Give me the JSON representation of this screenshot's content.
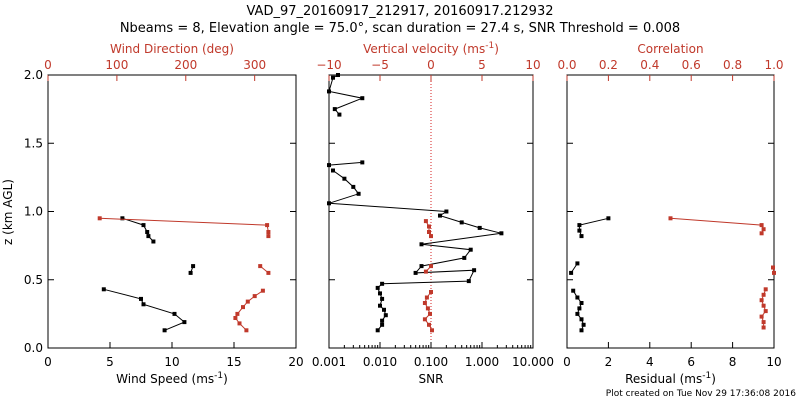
{
  "header": {
    "title_line1": "VAD_97_20160917_212917, 20160917.212932",
    "title_line2": "Nbeams = 8, Elevation angle = 75.0°, scan duration = 27.4 s, SNR Threshold = 0.008"
  },
  "footer": {
    "created": "Plot created on Tue Nov 29 17:36:08 2016"
  },
  "y_axis": {
    "label": "z (km AGL)",
    "ticks": [
      "0.0",
      "0.5",
      "1.0",
      "1.5",
      "2.0"
    ],
    "ylim": [
      0,
      2.0
    ]
  },
  "colors": {
    "primary": "#000000",
    "secondary": "#c0392b",
    "zero_line": "#d62020"
  },
  "chart_data": [
    {
      "type": "line",
      "panel": "wind",
      "bottom_axis": {
        "label": "Wind Speed (ms",
        "label_sup": "-1",
        "label_end": ")",
        "ticks": [
          "0",
          "5",
          "10",
          "15",
          "20"
        ],
        "range": [
          0,
          20
        ]
      },
      "top_axis": {
        "label": "Wind Direction (deg)",
        "ticks": [
          "0",
          "100",
          "200",
          "300"
        ],
        "range": [
          0,
          360
        ]
      },
      "series": [
        {
          "axis": "bottom",
          "color": "#000000",
          "segments": [
            [
              [
                6.0,
                0.95
              ],
              [
                7.7,
                0.9
              ],
              [
                8.0,
                0.85
              ],
              [
                8.1,
                0.82
              ],
              [
                8.5,
                0.78
              ]
            ],
            [
              [
                11.7,
                0.6
              ],
              [
                11.5,
                0.55
              ]
            ],
            [
              [
                4.5,
                0.43
              ],
              [
                7.5,
                0.36
              ],
              [
                7.7,
                0.32
              ],
              [
                10.2,
                0.25
              ],
              [
                11.0,
                0.19
              ],
              [
                9.4,
                0.13
              ]
            ]
          ]
        },
        {
          "axis": "top",
          "color": "#c0392b",
          "segments": [
            [
              [
                75,
                0.95
              ],
              [
                318,
                0.9
              ],
              [
                320,
                0.85
              ],
              [
                320,
                0.82
              ]
            ],
            [
              [
                308,
                0.6
              ],
              [
                320,
                0.55
              ]
            ],
            [
              [
                312,
                0.42
              ],
              [
                300,
                0.38
              ],
              [
                290,
                0.34
              ],
              [
                283,
                0.3
              ],
              [
                275,
                0.25
              ],
              [
                272,
                0.22
              ],
              [
                278,
                0.18
              ],
              [
                288,
                0.13
              ]
            ]
          ]
        }
      ]
    },
    {
      "type": "line",
      "panel": "snr",
      "bottom_axis": {
        "label": "SNR",
        "ticks": [
          "0.001",
          "0.010",
          "0.100",
          "1.000",
          "10.000"
        ],
        "log": true,
        "range": [
          0.001,
          10
        ]
      },
      "top_axis": {
        "label": "Vertical velocity (ms",
        "label_sup": "-1",
        "label_end": ")",
        "ticks": [
          "−10",
          "−5",
          "0",
          "5",
          "10"
        ],
        "range": [
          -10,
          10
        ]
      },
      "series": [
        {
          "axis": "bottom",
          "color": "#000000",
          "segments": [
            [
              [
                0.0015,
                2.0
              ],
              [
                0.0012,
                1.98
              ],
              [
                0.001,
                1.88
              ],
              [
                0.0045,
                1.83
              ],
              [
                0.0013,
                1.75
              ],
              [
                0.0016,
                1.71
              ]
            ],
            [
              [
                0.0045,
                1.36
              ],
              [
                0.001,
                1.34
              ]
            ],
            [
              [
                0.0012,
                1.3
              ],
              [
                0.002,
                1.24
              ],
              [
                0.003,
                1.18
              ],
              [
                0.0038,
                1.13
              ],
              [
                0.001,
                1.06
              ],
              [
                0.2,
                1.0
              ],
              [
                0.15,
                0.97
              ],
              [
                0.4,
                0.92
              ],
              [
                0.9,
                0.88
              ],
              [
                2.4,
                0.84
              ],
              [
                0.065,
                0.76
              ],
              [
                0.6,
                0.72
              ],
              [
                0.45,
                0.66
              ],
              [
                0.065,
                0.6
              ],
              [
                0.05,
                0.55
              ],
              [
                0.7,
                0.57
              ],
              [
                0.55,
                0.49
              ],
              [
                0.011,
                0.47
              ],
              [
                0.009,
                0.44
              ],
              [
                0.01,
                0.4
              ],
              [
                0.011,
                0.36
              ],
              [
                0.01,
                0.31
              ],
              [
                0.012,
                0.28
              ],
              [
                0.013,
                0.24
              ],
              [
                0.011,
                0.2
              ],
              [
                0.011,
                0.17
              ],
              [
                0.009,
                0.13
              ]
            ]
          ]
        },
        {
          "axis": "top",
          "color": "#c0392b",
          "segments": [
            [
              [
                -0.5,
                0.93
              ],
              [
                -0.2,
                0.89
              ],
              [
                -0.2,
                0.85
              ],
              [
                0.0,
                0.82
              ]
            ],
            [
              [
                0.0,
                0.6
              ],
              [
                -0.5,
                0.56
              ]
            ],
            [
              [
                0.0,
                0.41
              ],
              [
                -0.4,
                0.37
              ],
              [
                -0.6,
                0.33
              ],
              [
                -0.3,
                0.29
              ],
              [
                -0.1,
                0.25
              ],
              [
                -0.6,
                0.21
              ],
              [
                -0.2,
                0.17
              ],
              [
                0.1,
                0.13
              ]
            ]
          ]
        }
      ],
      "reference_line": {
        "snr": 0.1,
        "color": "#d62020",
        "style": "dotted"
      }
    },
    {
      "type": "line",
      "panel": "residual",
      "bottom_axis": {
        "label": "Residual  (ms",
        "label_sup": "-1",
        "label_end": ")",
        "ticks": [
          "0",
          "2",
          "4",
          "6",
          "8",
          "10"
        ],
        "range": [
          0,
          10
        ]
      },
      "top_axis": {
        "label": "Correlation",
        "ticks": [
          "0.0",
          "0.2",
          "0.4",
          "0.6",
          "0.8",
          "1.0"
        ],
        "range": [
          0,
          1
        ]
      },
      "series": [
        {
          "axis": "bottom",
          "color": "#000000",
          "segments": [
            [
              [
                2.0,
                0.95
              ],
              [
                0.6,
                0.9
              ],
              [
                0.6,
                0.86
              ],
              [
                0.7,
                0.82
              ]
            ],
            [
              [
                0.5,
                0.62
              ],
              [
                0.2,
                0.55
              ]
            ],
            [
              [
                0.3,
                0.42
              ],
              [
                0.5,
                0.37
              ],
              [
                0.7,
                0.33
              ],
              [
                0.6,
                0.29
              ],
              [
                0.5,
                0.25
              ],
              [
                0.7,
                0.21
              ],
              [
                0.8,
                0.17
              ],
              [
                0.7,
                0.13
              ]
            ]
          ]
        },
        {
          "axis": "top",
          "color": "#c0392b",
          "segments": [
            [
              [
                0.5,
                0.95
              ],
              [
                0.94,
                0.9
              ],
              [
                0.95,
                0.87
              ],
              [
                0.94,
                0.84
              ]
            ],
            [
              [
                0.995,
                0.59
              ],
              [
                1.0,
                0.55
              ]
            ],
            [
              [
                0.96,
                0.43
              ],
              [
                0.95,
                0.39
              ],
              [
                0.94,
                0.35
              ],
              [
                0.95,
                0.31
              ],
              [
                0.96,
                0.27
              ],
              [
                0.94,
                0.23
              ],
              [
                0.95,
                0.19
              ],
              [
                0.95,
                0.15
              ]
            ]
          ]
        }
      ]
    }
  ]
}
